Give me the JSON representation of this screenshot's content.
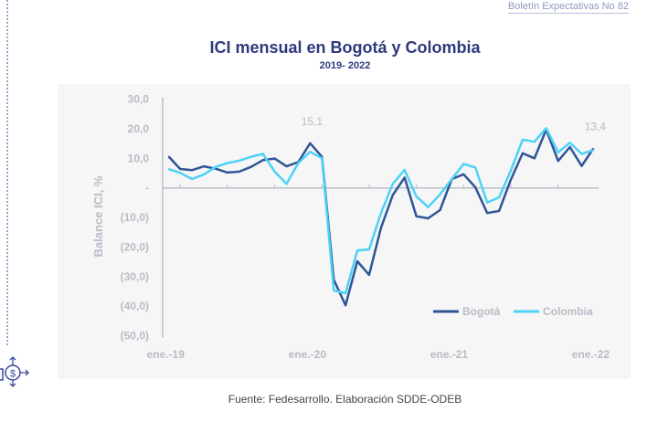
{
  "header": {
    "doc_label": "Boletín Expectativas No 82"
  },
  "source": "Fuente: Fedesarrollo. Elaboración SDDE-ODEB",
  "colors": {
    "bogota": "#2f5597",
    "colombia": "#4dd2f7",
    "axis": "#b9bfcb",
    "text": "#b8bcc6",
    "title": "#2e3a7c"
  },
  "chart_data": {
    "type": "line",
    "title": "ICI mensual en Bogotá y Colombia",
    "subtitle": "2019- 2022",
    "ylabel": "Balance ICI, %",
    "xlabel": "",
    "ylim": [
      -50,
      30
    ],
    "yticks": [
      30,
      20,
      10,
      0,
      -10,
      -20,
      -30,
      -40,
      -50
    ],
    "ytick_labels": [
      "30,0",
      "20,0",
      "10,0",
      "-",
      "(10,0)",
      "(20,0)",
      "(30,0)",
      "(40,0)",
      "(50,0)"
    ],
    "xtick_labels": [
      {
        "index": 0,
        "label": "ene.-19"
      },
      {
        "index": 12,
        "label": "ene.-20"
      },
      {
        "index": 24,
        "label": "ene.-21"
      },
      {
        "index": 36,
        "label": "ene.-22"
      }
    ],
    "legend": "bottom-right",
    "annotations": [
      {
        "index": 12,
        "label": "15,1"
      },
      {
        "index": 36,
        "label": "13,4"
      }
    ],
    "series": [
      {
        "name": "Bogotá",
        "values": [
          10.7,
          6.4,
          6.0,
          7.3,
          6.5,
          5.2,
          5.5,
          7.1,
          9.4,
          9.9,
          7.3,
          8.7,
          15.1,
          10.5,
          -31.0,
          -39.7,
          -24.8,
          -29.4,
          -13.5,
          -2.4,
          3.5,
          -9.6,
          -10.3,
          -7.5,
          3.0,
          4.6,
          0.2,
          -8.5,
          -7.8,
          2.8,
          11.7,
          10.0,
          19.7,
          9.1,
          13.8,
          7.4,
          13.4
        ]
      },
      {
        "name": "Colombia",
        "values": [
          6.4,
          5.1,
          3.0,
          4.5,
          7.1,
          8.4,
          9.2,
          10.5,
          11.5,
          5.5,
          1.4,
          8.4,
          12.2,
          10.0,
          -34.7,
          -35.6,
          -21.2,
          -20.8,
          -8.5,
          1.4,
          6.1,
          -2.9,
          -6.5,
          -2.2,
          3.0,
          8.1,
          6.9,
          -4.9,
          -3.2,
          5.9,
          16.3,
          15.6,
          20.2,
          12.0,
          15.3,
          11.5,
          12.8
        ]
      }
    ]
  }
}
